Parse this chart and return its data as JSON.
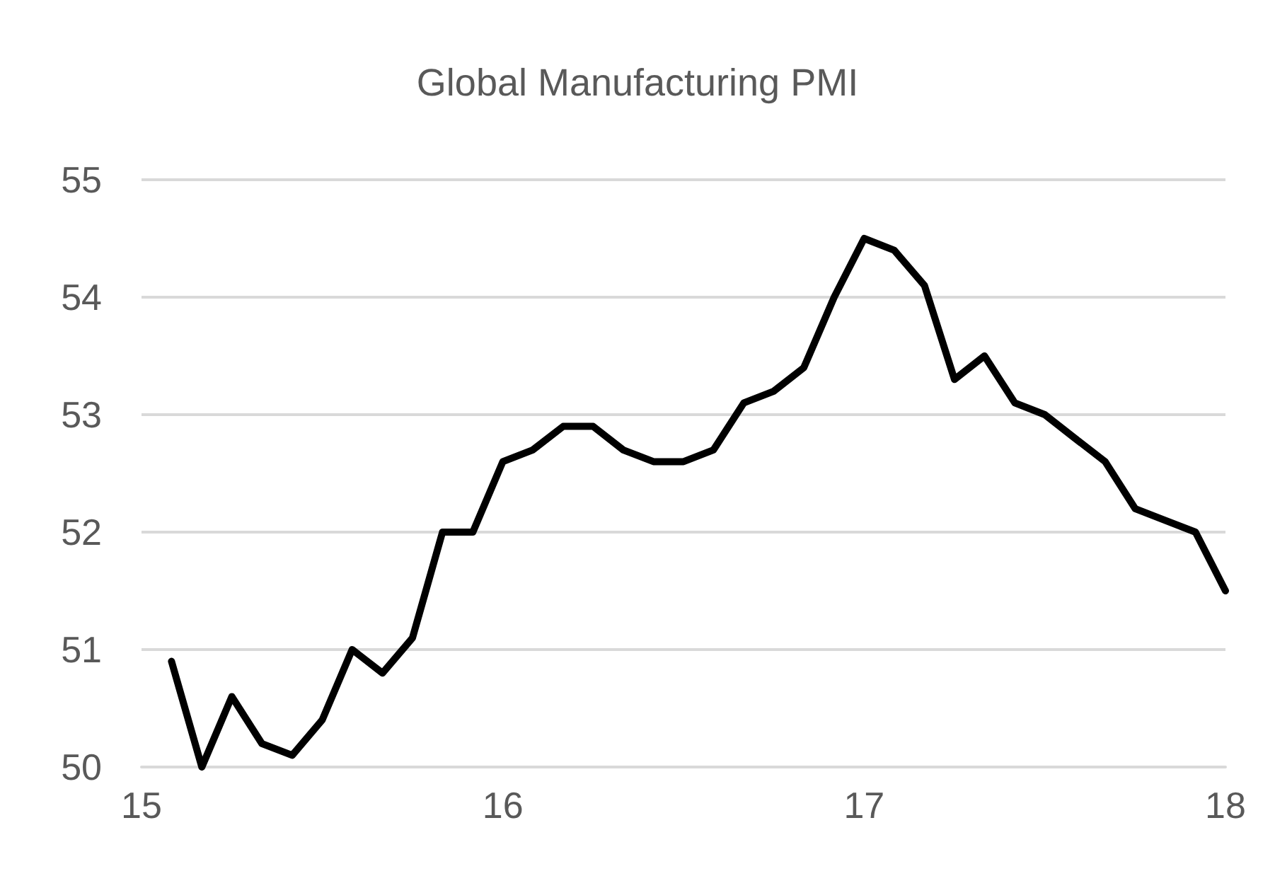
{
  "chart_data": {
    "type": "line",
    "title": "Global Manufacturing PMI",
    "x": [
      15.083,
      15.167,
      15.25,
      15.333,
      15.417,
      15.5,
      15.583,
      15.667,
      15.75,
      15.833,
      15.917,
      16.0,
      16.083,
      16.167,
      16.25,
      16.333,
      16.417,
      16.5,
      16.583,
      16.667,
      16.75,
      16.833,
      16.917,
      17.0,
      17.083,
      17.167,
      17.25,
      17.333,
      17.417,
      17.5,
      17.583,
      17.667,
      17.75,
      17.833,
      17.917,
      18.0
    ],
    "series": [
      {
        "color": "#000000",
        "values": [
          50.9,
          50.0,
          50.6,
          50.2,
          50.1,
          50.4,
          51.0,
          50.8,
          51.1,
          52.0,
          52.0,
          52.6,
          52.7,
          52.9,
          52.9,
          52.7,
          52.6,
          52.6,
          52.7,
          53.1,
          53.2,
          53.4,
          54.0,
          54.5,
          54.4,
          54.1,
          53.3,
          53.5,
          53.1,
          53.0,
          52.8,
          52.6,
          52.2,
          52.1,
          52.0,
          51.5
        ]
      }
    ],
    "xlim": [
      15,
      18
    ],
    "xticks": [
      15,
      16,
      17,
      18
    ],
    "ylim": [
      50,
      55
    ],
    "yticks": [
      50,
      51,
      52,
      53,
      54,
      55
    ],
    "grid": "y",
    "marker": "none",
    "line_style": "solid"
  }
}
